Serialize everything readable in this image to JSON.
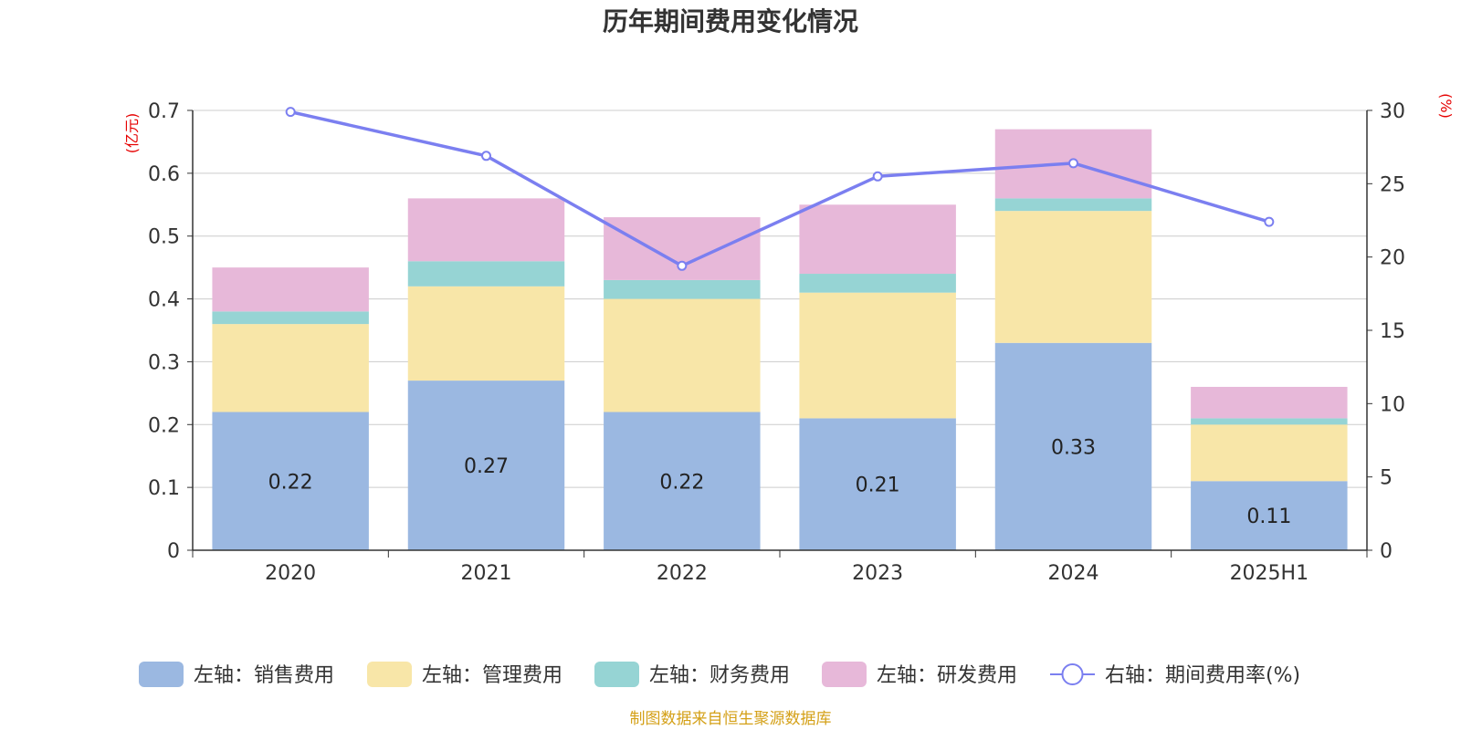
{
  "chart_data": {
    "type": "bar",
    "stacked": true,
    "title": "历年期间费用变化情况",
    "categories": [
      "2020",
      "2021",
      "2022",
      "2023",
      "2024",
      "2025H1"
    ],
    "left_axis": {
      "unit": "(亿元)",
      "ylim": [
        0,
        0.7
      ],
      "ticks": [
        "0",
        "0.1",
        "0.2",
        "0.3",
        "0.4",
        "0.5",
        "0.6",
        "0.7"
      ]
    },
    "right_axis": {
      "unit": "(%)",
      "ylim": [
        0,
        30
      ],
      "ticks": [
        "0",
        "5",
        "10",
        "15",
        "20",
        "25",
        "30"
      ]
    },
    "series": [
      {
        "name": "左轴：销售费用",
        "type": "bar",
        "color": "#9bb8e1",
        "values": [
          0.22,
          0.27,
          0.22,
          0.21,
          0.33,
          0.11
        ],
        "labels": [
          "0.22",
          "0.27",
          "0.22",
          "0.21",
          "0.33",
          "0.11"
        ]
      },
      {
        "name": "左轴：管理费用",
        "type": "bar",
        "color": "#f8e6a8",
        "values": [
          0.14,
          0.15,
          0.18,
          0.2,
          0.21,
          0.09
        ]
      },
      {
        "name": "左轴：财务费用",
        "type": "bar",
        "color": "#96d4d4",
        "values": [
          0.02,
          0.04,
          0.03,
          0.03,
          0.02,
          0.01
        ]
      },
      {
        "name": "左轴：研发费用",
        "type": "bar",
        "color": "#e7b8d9",
        "values": [
          0.07,
          0.1,
          0.1,
          0.11,
          0.11,
          0.05
        ]
      },
      {
        "name": "右轴：期间费用率(%)",
        "type": "line",
        "axis": "right",
        "color": "#7b7ff0",
        "values": [
          29.9,
          26.9,
          19.4,
          25.5,
          26.4,
          22.4
        ]
      }
    ],
    "legend_position": "bottom",
    "grid": true
  },
  "source_note": "制图数据来自恒生聚源数据库"
}
